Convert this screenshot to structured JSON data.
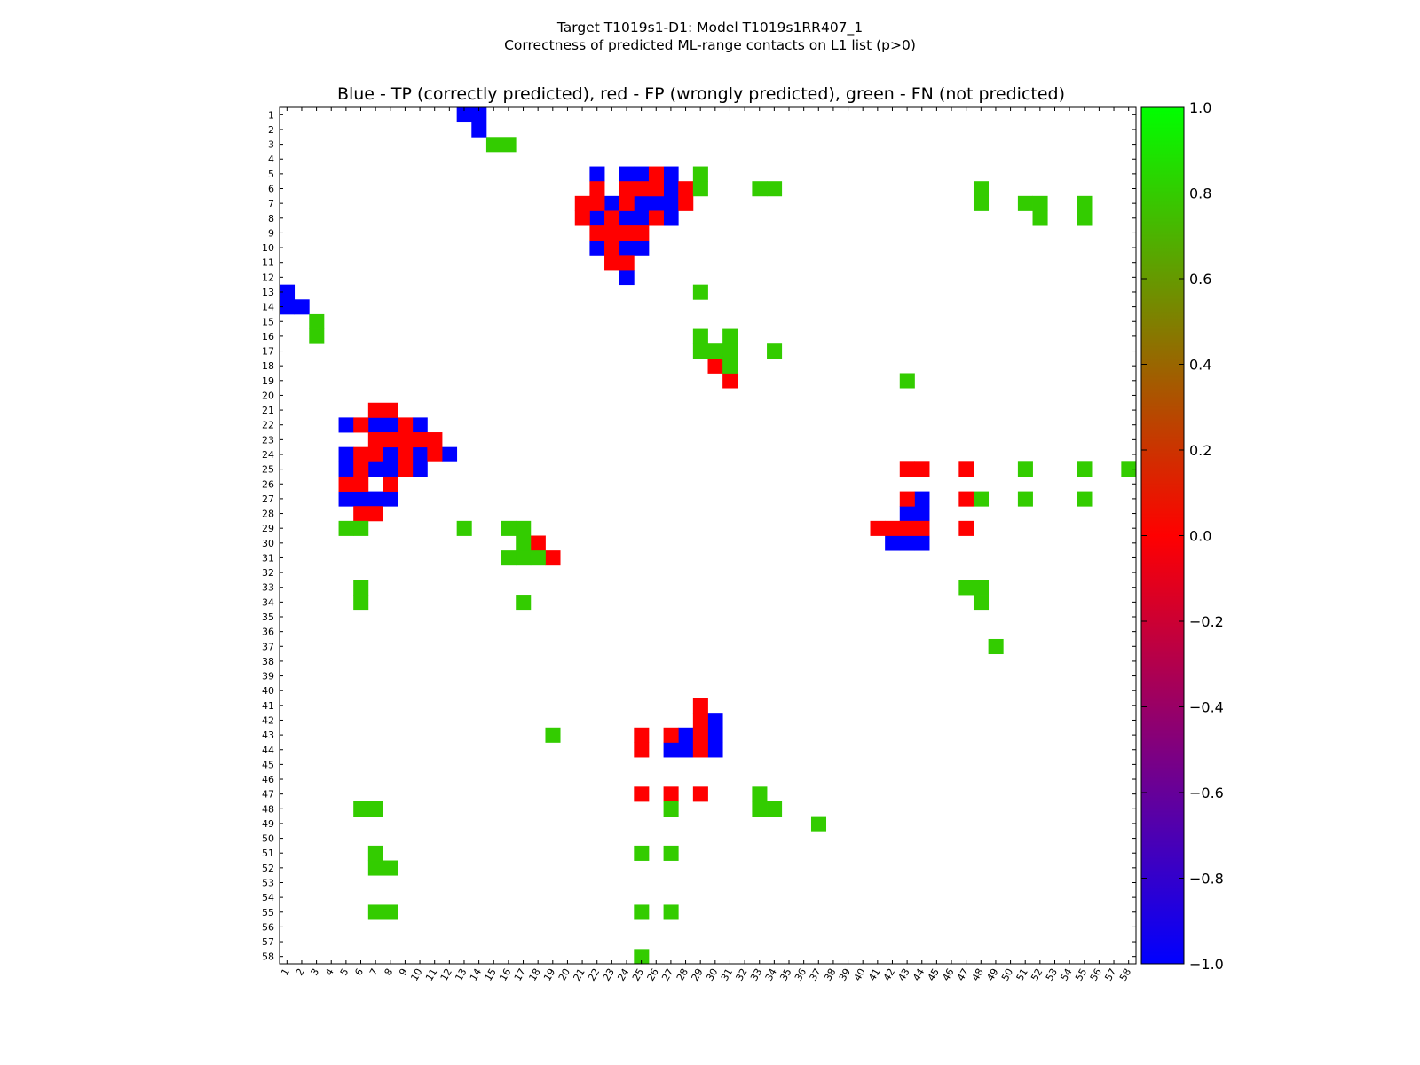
{
  "figure": {
    "suptitle_line1": "Target T1019s1-D1: Model T1019s1RR407_1",
    "suptitle_line2": "Correctness of predicted ML-range contacts on L1 list (p>0)"
  },
  "colors": {
    "tp": "#0000ff",
    "fp": "#ff0000",
    "fn": "#33cc00",
    "background": "#ffffff"
  },
  "chart_data": {
    "type": "heatmap",
    "title": "Blue - TP (correctly predicted), red - FP (wrongly predicted), green - FN (not predicted)",
    "n": 58,
    "x_ticks": [
      "1",
      "2",
      "3",
      "4",
      "5",
      "6",
      "7",
      "8",
      "9",
      "10",
      "11",
      "12",
      "13",
      "14",
      "15",
      "16",
      "17",
      "18",
      "19",
      "20",
      "21",
      "22",
      "23",
      "24",
      "25",
      "26",
      "27",
      "28",
      "29",
      "30",
      "31",
      "32",
      "33",
      "34",
      "35",
      "36",
      "37",
      "38",
      "39",
      "40",
      "41",
      "42",
      "43",
      "44",
      "45",
      "46",
      "47",
      "48",
      "49",
      "50",
      "51",
      "52",
      "53",
      "54",
      "55",
      "56",
      "57",
      "58"
    ],
    "y_ticks": [
      "1",
      "2",
      "3",
      "4",
      "5",
      "6",
      "7",
      "8",
      "9",
      "10",
      "11",
      "12",
      "13",
      "14",
      "15",
      "16",
      "17",
      "18",
      "19",
      "20",
      "21",
      "22",
      "23",
      "24",
      "25",
      "26",
      "27",
      "28",
      "29",
      "30",
      "31",
      "32",
      "33",
      "34",
      "35",
      "36",
      "37",
      "38",
      "39",
      "40",
      "41",
      "42",
      "43",
      "44",
      "45",
      "46",
      "47",
      "48",
      "49",
      "50",
      "51",
      "52",
      "53",
      "54",
      "55",
      "56",
      "57",
      "58"
    ],
    "value_legend": {
      "TP": -1,
      "FP": 0,
      "FN": 1
    },
    "colorbar": {
      "ticks": [
        "1.0",
        "0.8",
        "0.6",
        "0.4",
        "0.2",
        "0.0",
        "−0.2",
        "−0.4",
        "−0.6",
        "−0.8",
        "−1.0"
      ],
      "range": [
        -1,
        1
      ],
      "stops": [
        "#0000ff",
        "#ff0000",
        "#00ff00"
      ]
    },
    "cells": {
      "TP": [
        [
          1,
          13
        ],
        [
          1,
          14
        ],
        [
          2,
          14
        ],
        [
          13,
          1
        ],
        [
          14,
          1
        ],
        [
          14,
          2
        ],
        [
          5,
          22
        ],
        [
          5,
          24
        ],
        [
          5,
          25
        ],
        [
          5,
          27
        ],
        [
          6,
          27
        ],
        [
          7,
          23
        ],
        [
          7,
          25
        ],
        [
          7,
          26
        ],
        [
          7,
          27
        ],
        [
          8,
          22
        ],
        [
          8,
          24
        ],
        [
          8,
          25
        ],
        [
          8,
          27
        ],
        [
          10,
          22
        ],
        [
          10,
          24
        ],
        [
          10,
          25
        ],
        [
          12,
          24
        ],
        [
          22,
          5
        ],
        [
          22,
          7
        ],
        [
          22,
          8
        ],
        [
          22,
          10
        ],
        [
          24,
          5
        ],
        [
          24,
          8
        ],
        [
          24,
          10
        ],
        [
          24,
          12
        ],
        [
          25,
          5
        ],
        [
          25,
          7
        ],
        [
          25,
          8
        ],
        [
          25,
          10
        ],
        [
          27,
          5
        ],
        [
          27,
          6
        ],
        [
          27,
          7
        ],
        [
          27,
          8
        ],
        [
          27,
          44
        ],
        [
          28,
          43
        ],
        [
          28,
          44
        ],
        [
          30,
          42
        ],
        [
          30,
          43
        ],
        [
          30,
          44
        ],
        [
          42,
          30
        ],
        [
          43,
          28
        ],
        [
          43,
          30
        ],
        [
          44,
          27
        ],
        [
          44,
          28
        ],
        [
          44,
          30
        ]
      ],
      "FP": [
        [
          5,
          26
        ],
        [
          6,
          22
        ],
        [
          6,
          24
        ],
        [
          6,
          25
        ],
        [
          6,
          26
        ],
        [
          6,
          28
        ],
        [
          7,
          21
        ],
        [
          7,
          22
        ],
        [
          7,
          24
        ],
        [
          7,
          28
        ],
        [
          8,
          21
        ],
        [
          8,
          23
        ],
        [
          8,
          26
        ],
        [
          9,
          22
        ],
        [
          9,
          23
        ],
        [
          9,
          24
        ],
        [
          9,
          25
        ],
        [
          10,
          23
        ],
        [
          11,
          23
        ],
        [
          11,
          24
        ],
        [
          21,
          7
        ],
        [
          21,
          8
        ],
        [
          22,
          6
        ],
        [
          22,
          9
        ],
        [
          23,
          7
        ],
        [
          23,
          8
        ],
        [
          23,
          9
        ],
        [
          23,
          10
        ],
        [
          23,
          11
        ],
        [
          24,
          6
        ],
        [
          24,
          7
        ],
        [
          24,
          9
        ],
        [
          24,
          11
        ],
        [
          25,
          6
        ],
        [
          25,
          9
        ],
        [
          26,
          5
        ],
        [
          26,
          6
        ],
        [
          26,
          8
        ],
        [
          28,
          6
        ],
        [
          28,
          7
        ],
        [
          18,
          30
        ],
        [
          19,
          31
        ],
        [
          30,
          18
        ],
        [
          31,
          19
        ],
        [
          25,
          43
        ],
        [
          25,
          44
        ],
        [
          25,
          47
        ],
        [
          27,
          43
        ],
        [
          27,
          47
        ],
        [
          29,
          41
        ],
        [
          29,
          42
        ],
        [
          29,
          43
        ],
        [
          29,
          44
        ],
        [
          29,
          47
        ],
        [
          41,
          29
        ],
        [
          42,
          29
        ],
        [
          43,
          25
        ],
        [
          43,
          27
        ],
        [
          43,
          29
        ],
        [
          44,
          25
        ],
        [
          44,
          29
        ],
        [
          47,
          25
        ],
        [
          47,
          27
        ],
        [
          47,
          29
        ]
      ],
      "FN": [
        [
          3,
          15
        ],
        [
          3,
          16
        ],
        [
          5,
          29
        ],
        [
          6,
          29
        ],
        [
          6,
          33
        ],
        [
          6,
          34
        ],
        [
          6,
          48
        ],
        [
          7,
          48
        ],
        [
          7,
          51
        ],
        [
          7,
          52
        ],
        [
          7,
          55
        ],
        [
          8,
          52
        ],
        [
          8,
          55
        ],
        [
          13,
          29
        ],
        [
          15,
          3
        ],
        [
          16,
          3
        ],
        [
          16,
          29
        ],
        [
          16,
          31
        ],
        [
          17,
          29
        ],
        [
          17,
          30
        ],
        [
          17,
          31
        ],
        [
          17,
          34
        ],
        [
          18,
          31
        ],
        [
          19,
          43
        ],
        [
          25,
          51
        ],
        [
          25,
          55
        ],
        [
          25,
          58
        ],
        [
          27,
          48
        ],
        [
          27,
          51
        ],
        [
          27,
          55
        ],
        [
          29,
          5
        ],
        [
          29,
          6
        ],
        [
          29,
          13
        ],
        [
          29,
          16
        ],
        [
          29,
          17
        ],
        [
          30,
          17
        ],
        [
          31,
          16
        ],
        [
          31,
          17
        ],
        [
          31,
          18
        ],
        [
          33,
          6
        ],
        [
          33,
          47
        ],
        [
          33,
          48
        ],
        [
          34,
          6
        ],
        [
          34,
          17
        ],
        [
          34,
          48
        ],
        [
          37,
          49
        ],
        [
          43,
          19
        ],
        [
          48,
          6
        ],
        [
          48,
          7
        ],
        [
          48,
          27
        ],
        [
          48,
          33
        ],
        [
          48,
          34
        ],
        [
          47,
          33
        ],
        [
          49,
          37
        ],
        [
          51,
          7
        ],
        [
          51,
          25
        ],
        [
          51,
          27
        ],
        [
          52,
          7
        ],
        [
          52,
          8
        ],
        [
          55,
          7
        ],
        [
          55,
          8
        ],
        [
          55,
          25
        ],
        [
          55,
          27
        ],
        [
          58,
          25
        ]
      ]
    }
  }
}
